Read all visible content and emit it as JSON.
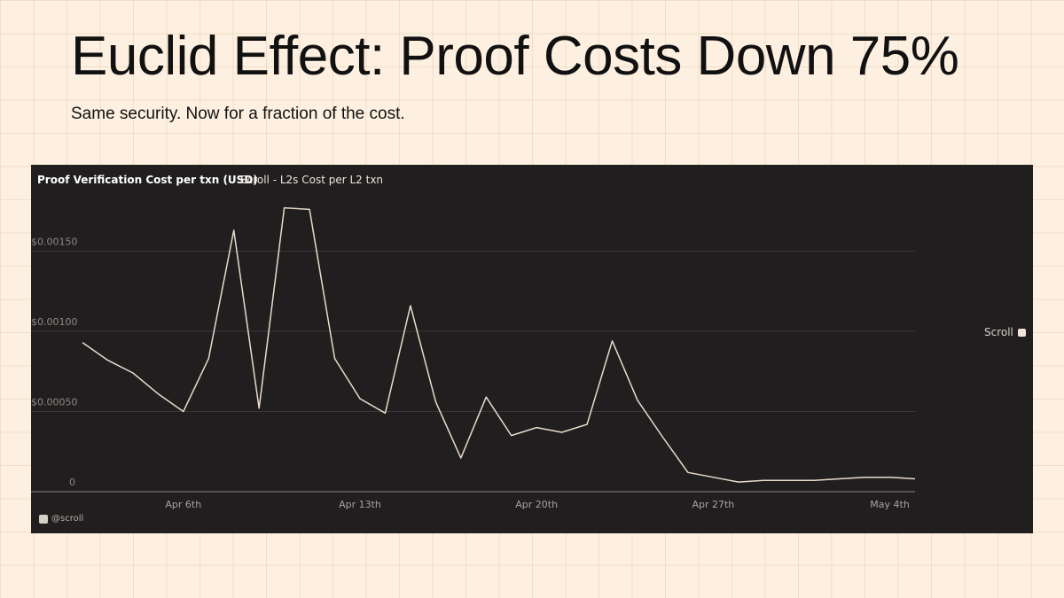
{
  "slide": {
    "headline": "Euclid Effect: Proof Costs Down 75%",
    "subheadline": "Same security. Now for a fraction of the cost."
  },
  "footer": {
    "handle": "@scroll",
    "icon": "scroll-logo-icon"
  },
  "colors": {
    "background": "#fdf0e0",
    "panel": "#211e1f",
    "line": "#e8dccb",
    "text": "#111111"
  },
  "chart_data": {
    "type": "line",
    "title": "Proof Verification Cost per txn (USD)",
    "subtitle": "Scroll - L2s Cost per L2 txn",
    "x": [
      "2025-04-02",
      "2025-04-03",
      "2025-04-04",
      "2025-04-05",
      "2025-04-06",
      "2025-04-07",
      "2025-04-08",
      "2025-04-09",
      "2025-04-10",
      "2025-04-11",
      "2025-04-12",
      "2025-04-13",
      "2025-04-14",
      "2025-04-15",
      "2025-04-16",
      "2025-04-17",
      "2025-04-18",
      "2025-04-19",
      "2025-04-20",
      "2025-04-21",
      "2025-04-22",
      "2025-04-23",
      "2025-04-24",
      "2025-04-25",
      "2025-04-26",
      "2025-04-27",
      "2025-04-28",
      "2025-04-29",
      "2025-04-30",
      "2025-05-01",
      "2025-05-02",
      "2025-05-03",
      "2025-05-04",
      "2025-05-05"
    ],
    "series": [
      {
        "name": "Scroll",
        "values": [
          0.00093,
          0.00082,
          0.00074,
          0.00061,
          0.0005,
          0.00083,
          0.00163,
          0.00052,
          0.00177,
          0.00176,
          0.00083,
          0.00058,
          0.00049,
          0.00116,
          0.00056,
          0.00021,
          0.00059,
          0.00035,
          0.0004,
          0.00037,
          0.00042,
          0.00094,
          0.00057,
          0.00034,
          0.00012,
          9e-05,
          6e-05,
          7e-05,
          7e-05,
          7e-05,
          8e-05,
          9e-05,
          9e-05,
          8e-05
        ]
      }
    ],
    "x_ticks": [
      "Apr 6th",
      "Apr 13th",
      "Apr 20th",
      "Apr 27th",
      "May 4th"
    ],
    "y_ticks": [
      "0",
      "$0.00050",
      "$0.00100",
      "$0.00150"
    ],
    "y_tick_values": [
      0,
      0.0005,
      0.001,
      0.0015
    ],
    "ylim": [
      0,
      0.00195
    ],
    "xlabel": "",
    "ylabel": "",
    "legend": "right",
    "grid": "horizontal"
  }
}
